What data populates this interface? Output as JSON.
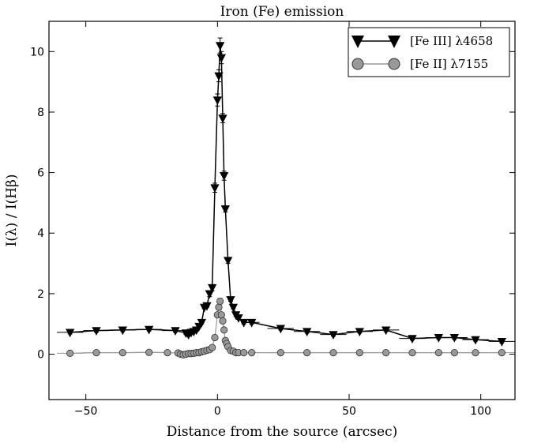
{
  "chart_data": {
    "type": "line",
    "title": "Iron (Fe) emission",
    "xlabel": "Distance from the source (arcsec)",
    "ylabel": "I(λ) / I(Hβ)",
    "xlim": [
      -64,
      113
    ],
    "ylim": [
      -1.5,
      11
    ],
    "xticks": [
      -50,
      0,
      50,
      100
    ],
    "yticks": [
      0,
      2,
      4,
      6,
      8,
      10
    ],
    "xtick_labels": [
      "−50",
      "0",
      "50",
      "100"
    ],
    "ytick_labels": [
      "0",
      "2",
      "4",
      "6",
      "8",
      "10"
    ],
    "grid": false,
    "legend_position": "top-right",
    "series": [
      {
        "name": "[Fe III] λ4658",
        "color": "#000000",
        "marker": "triangle-down",
        "x": [
          -56,
          -46,
          -36,
          -26,
          -16,
          -12,
          -11,
          -10,
          -9,
          -8,
          -7,
          -6,
          -5,
          -4,
          -3,
          -2,
          -1,
          0,
          0.5,
          1,
          1.5,
          2,
          2.5,
          3,
          4,
          5,
          6,
          7,
          8,
          10,
          13,
          24,
          34,
          44,
          54,
          64,
          74,
          84,
          90,
          98,
          108
        ],
        "y": [
          0.72,
          0.78,
          0.8,
          0.82,
          0.78,
          0.7,
          0.65,
          0.72,
          0.75,
          0.8,
          0.92,
          1.05,
          1.55,
          1.6,
          2.0,
          2.2,
          5.5,
          8.4,
          9.2,
          10.2,
          9.8,
          7.8,
          5.9,
          4.8,
          3.1,
          1.8,
          1.55,
          1.3,
          1.2,
          1.05,
          1.05,
          0.85,
          0.75,
          0.65,
          0.75,
          0.8,
          0.52,
          0.55,
          0.55,
          0.48,
          0.42
        ],
        "xerr": [
          5,
          5,
          5,
          5,
          5,
          1,
          1,
          1,
          1,
          1,
          1,
          1,
          1,
          1,
          0.5,
          0.5,
          0.5,
          0.3,
          0.3,
          0.3,
          0.3,
          0.3,
          0.3,
          0.5,
          0.5,
          0.5,
          0.5,
          0.5,
          1,
          1,
          3,
          5,
          5,
          5,
          5,
          5,
          5,
          5,
          5,
          5,
          5
        ],
        "yerr": [
          0.05,
          0.05,
          0.05,
          0.05,
          0.05,
          0.05,
          0.05,
          0.05,
          0.05,
          0.05,
          0.05,
          0.05,
          0.05,
          0.05,
          0.1,
          0.1,
          0.15,
          0.2,
          0.2,
          0.25,
          0.2,
          0.15,
          0.15,
          0.1,
          0.1,
          0.05,
          0.05,
          0.05,
          0.05,
          0.05,
          0.05,
          0.05,
          0.05,
          0.05,
          0.05,
          0.05,
          0.05,
          0.05,
          0.05,
          0.05,
          0.05
        ]
      },
      {
        "name": "[Fe II] λ7155",
        "color": "#999999",
        "marker": "circle",
        "x": [
          -56,
          -46,
          -36,
          -26,
          -19,
          -15,
          -14,
          -13,
          -12,
          -11,
          -10,
          -9,
          -8,
          -7,
          -6,
          -5,
          -4,
          -3,
          -2,
          -1,
          0,
          0.5,
          1,
          1.5,
          2,
          2.5,
          3,
          3.5,
          4,
          5,
          6,
          7,
          8,
          10,
          13,
          24,
          34,
          44,
          54,
          64,
          74,
          84,
          90,
          98,
          108
        ],
        "y": [
          0.03,
          0.05,
          0.05,
          0.06,
          0.05,
          0.04,
          0.0,
          -0.02,
          0.0,
          0.02,
          0.02,
          0.03,
          0.05,
          0.05,
          0.08,
          0.1,
          0.13,
          0.15,
          0.22,
          0.55,
          1.3,
          1.55,
          1.75,
          1.3,
          1.1,
          0.8,
          0.45,
          0.35,
          0.25,
          0.12,
          0.1,
          0.05,
          0.05,
          0.05,
          0.05,
          0.05,
          0.05,
          0.05,
          0.05,
          0.05,
          0.05,
          0.05,
          0.05,
          0.05,
          0.05
        ],
        "xerr": [
          5,
          5,
          5,
          5,
          1,
          1,
          1,
          1,
          1,
          1,
          1,
          1,
          1,
          0.5,
          0.5,
          0.5,
          0.5,
          0.5,
          0.5,
          0.3,
          0.3,
          0.3,
          0.3,
          0.3,
          0.3,
          0.3,
          0.3,
          0.3,
          0.5,
          0.5,
          0.5,
          0.5,
          0.5,
          1,
          3,
          5,
          5,
          5,
          5,
          5,
          5,
          5,
          5,
          5,
          5
        ],
        "yerr": [
          0.03,
          0.03,
          0.03,
          0.03,
          0.03,
          0.03,
          0.03,
          0.03,
          0.03,
          0.03,
          0.03,
          0.03,
          0.03,
          0.03,
          0.03,
          0.03,
          0.03,
          0.03,
          0.05,
          0.05,
          0.08,
          0.08,
          0.1,
          0.08,
          0.08,
          0.05,
          0.05,
          0.05,
          0.03,
          0.03,
          0.03,
          0.03,
          0.03,
          0.03,
          0.03,
          0.03,
          0.03,
          0.03,
          0.03,
          0.03,
          0.03,
          0.03,
          0.03,
          0.03,
          0.03
        ]
      }
    ]
  }
}
